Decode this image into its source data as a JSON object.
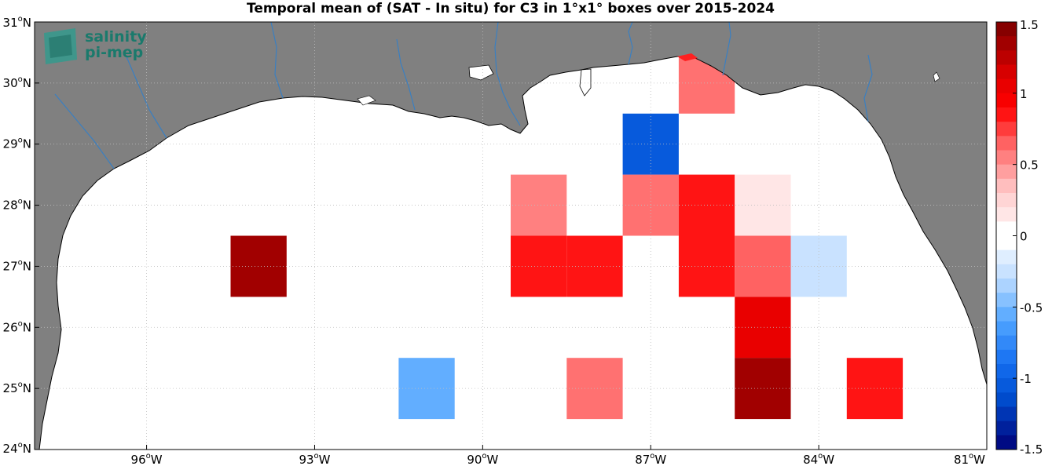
{
  "title": "Temporal mean of (SAT - In situ) for C3 in 1°x1° boxes over 2015-2024",
  "logo": {
    "line1": "salinity",
    "line2": "pi-mep"
  },
  "map": {
    "lon_range": [
      -98,
      -81
    ],
    "lat_range": [
      24,
      31
    ],
    "lon_ticks": [
      {
        "value": -96,
        "label": "96",
        "hemi": "W"
      },
      {
        "value": -93,
        "label": "93",
        "hemi": "W"
      },
      {
        "value": -90,
        "label": "90",
        "hemi": "W"
      },
      {
        "value": -87,
        "label": "87",
        "hemi": "W"
      },
      {
        "value": -84,
        "label": "84",
        "hemi": "W"
      },
      {
        "value": -81,
        "label": "81",
        "hemi": "W"
      }
    ],
    "lat_ticks": [
      {
        "value": 24,
        "label": "24",
        "hemi": "N"
      },
      {
        "value": 25,
        "label": "25",
        "hemi": "N"
      },
      {
        "value": 26,
        "label": "26",
        "hemi": "N"
      },
      {
        "value": 27,
        "label": "27",
        "hemi": "N"
      },
      {
        "value": 28,
        "label": "28",
        "hemi": "N"
      },
      {
        "value": 29,
        "label": "29",
        "hemi": "N"
      },
      {
        "value": 30,
        "label": "30",
        "hemi": "N"
      },
      {
        "value": 31,
        "label": "31",
        "hemi": "N"
      }
    ],
    "colors": {
      "land": "#808080",
      "ocean": "#ffffff",
      "river": "#3a7fc1",
      "grid": "#bfbfbf"
    }
  },
  "chart_data": {
    "type": "heatmap",
    "title": "Temporal mean of (SAT - In situ) for C3 in 1°x1° boxes over 2015-2024",
    "cell_size_deg": 1,
    "cells": [
      {
        "lon": -86,
        "lat": 30,
        "value": 0.6
      },
      {
        "lon": -87,
        "lat": 29,
        "value": -1.05
      },
      {
        "lon": -89,
        "lat": 28,
        "value": 0.55
      },
      {
        "lon": -87,
        "lat": 28,
        "value": 0.6
      },
      {
        "lon": -86,
        "lat": 28,
        "value": 0.85
      },
      {
        "lon": -85,
        "lat": 28,
        "value": 0.15
      },
      {
        "lon": -94,
        "lat": 27,
        "value": 1.35
      },
      {
        "lon": -89,
        "lat": 27,
        "value": 0.85
      },
      {
        "lon": -88,
        "lat": 27,
        "value": 0.85
      },
      {
        "lon": -86,
        "lat": 27,
        "value": 0.85
      },
      {
        "lon": -85,
        "lat": 27,
        "value": 0.65
      },
      {
        "lon": -84,
        "lat": 27,
        "value": -0.25
      },
      {
        "lon": -85,
        "lat": 26,
        "value": 1.05
      },
      {
        "lon": -91,
        "lat": 25,
        "value": -0.55
      },
      {
        "lon": -88,
        "lat": 25,
        "value": 0.6
      },
      {
        "lon": -85,
        "lat": 25,
        "value": 1.35
      },
      {
        "lon": -83,
        "lat": 25,
        "value": 0.85
      }
    ]
  },
  "colorbar": {
    "min": -1.5,
    "max": 1.5,
    "ticks": [
      "1.5",
      "1",
      "0.5",
      "0",
      "-0.5",
      "-1",
      "-1.5"
    ],
    "tick_values": [
      1.5,
      1,
      0.5,
      0,
      -0.5,
      -1,
      -1.5
    ]
  }
}
